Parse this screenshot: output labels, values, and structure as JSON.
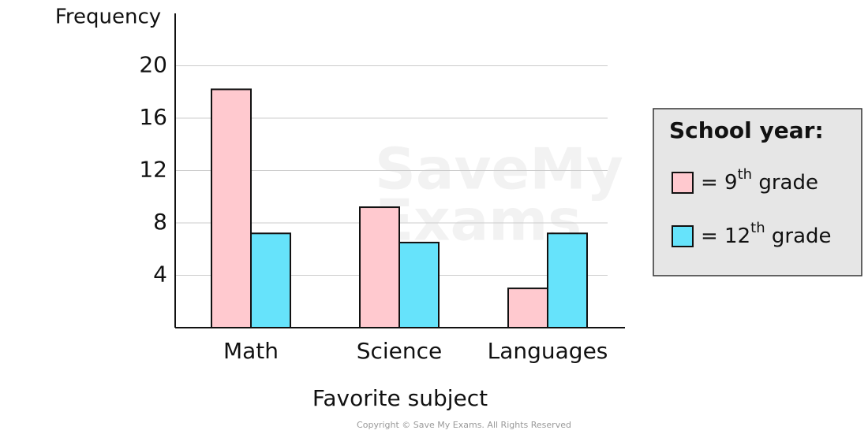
{
  "chart_data": {
    "type": "bar",
    "y_label": "Frequency",
    "x_label": "Favorite subject",
    "categories": [
      "Math",
      "Science",
      "Languages"
    ],
    "series": [
      {
        "name": "= 9th grade",
        "color": "#ffc9cf",
        "values": [
          18.2,
          9.2,
          3.0
        ]
      },
      {
        "name": "= 12th grade",
        "color": "#66e3fb",
        "values": [
          7.2,
          6.5,
          7.2
        ]
      }
    ],
    "legend_title": "School year:",
    "legend_position": "right",
    "ylim": [
      0,
      24
    ],
    "yticks": [
      4,
      8,
      12,
      16,
      20
    ],
    "grid": true,
    "watermark": [
      "SaveMy",
      "Exams"
    ],
    "copyright": "Copyright © Save My Exams. All Rights Reserved"
  }
}
